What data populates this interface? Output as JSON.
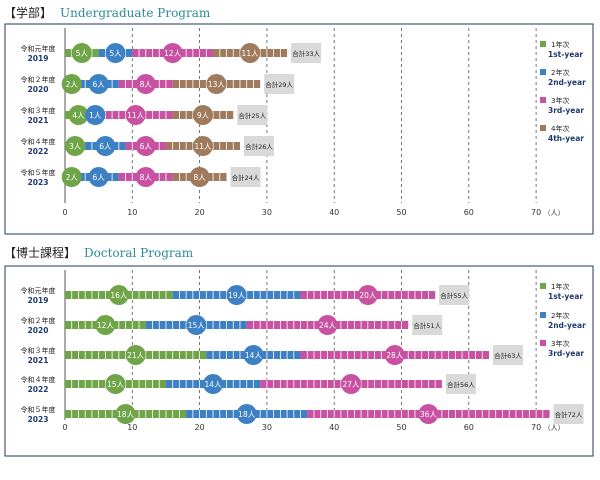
{
  "colors": {
    "year1": "#6fa548",
    "year2": "#3d80c4",
    "year3": "#c851a1",
    "year4": "#a07a5c",
    "frame": "#1f3a5c",
    "total_box": "#d9d9d9",
    "title_en": "#2b8a9a"
  },
  "unit_label": "（人）",
  "x_ticks": [
    0,
    10,
    20,
    30,
    40,
    50,
    60,
    70
  ],
  "chart_data": [
    {
      "type": "bar",
      "stacked": true,
      "orientation": "horizontal",
      "title_jp": "【学部】",
      "title_en": "Undergraduate Program",
      "xlim": [
        0,
        70
      ],
      "xlabel": "（人）",
      "legend_position": "right",
      "legend": [
        {
          "jp": "1年次",
          "en": "1st-year",
          "color": "#6fa548"
        },
        {
          "jp": "2年次",
          "en": "2nd-year",
          "color": "#3d80c4"
        },
        {
          "jp": "3年次",
          "en": "3rd-year",
          "color": "#c851a1"
        },
        {
          "jp": "4年次",
          "en": "4th-year",
          "color": "#a07a5c"
        }
      ],
      "categories": [
        {
          "jp": "令和元年度",
          "year": "2019"
        },
        {
          "jp": "令和２年度",
          "year": "2020"
        },
        {
          "jp": "令和３年度",
          "year": "2021"
        },
        {
          "jp": "令和４年度",
          "year": "2022"
        },
        {
          "jp": "令和５年度",
          "year": "2023"
        }
      ],
      "series": [
        {
          "name": "1st-year",
          "values": [
            5,
            2,
            4,
            3,
            2
          ]
        },
        {
          "name": "2nd-year",
          "values": [
            5,
            6,
            1,
            6,
            6
          ]
        },
        {
          "name": "3rd-year",
          "values": [
            12,
            8,
            11,
            6,
            8
          ]
        },
        {
          "name": "4th-year",
          "values": [
            11,
            13,
            9,
            11,
            8
          ]
        }
      ],
      "totals": [
        "合計33人",
        "合計29人",
        "合計25人",
        "合計26人",
        "合計24人"
      ],
      "segment_labels": [
        [
          "5人",
          "5人",
          "12人",
          "11人"
        ],
        [
          "2人",
          "6人",
          "8人",
          "13人"
        ],
        [
          "4人",
          "1人",
          "11人",
          "9人"
        ],
        [
          "3人",
          "6人",
          "6人",
          "11人"
        ],
        [
          "2人",
          "6人",
          "8人",
          "8人"
        ]
      ]
    },
    {
      "type": "bar",
      "stacked": true,
      "orientation": "horizontal",
      "title_jp": "【博士課程】",
      "title_en": "Doctoral Program",
      "xlim": [
        0,
        70
      ],
      "xlabel": "（人）",
      "legend_position": "right",
      "legend": [
        {
          "jp": "1年次",
          "en": "1st-year",
          "color": "#6fa548"
        },
        {
          "jp": "2年次",
          "en": "2nd-year",
          "color": "#3d80c4"
        },
        {
          "jp": "3年次",
          "en": "3rd-year",
          "color": "#c851a1"
        }
      ],
      "categories": [
        {
          "jp": "令和元年度",
          "year": "2019"
        },
        {
          "jp": "令和２年度",
          "year": "2020"
        },
        {
          "jp": "令和３年度",
          "year": "2021"
        },
        {
          "jp": "令和４年度",
          "year": "2022"
        },
        {
          "jp": "令和５年度",
          "year": "2023"
        }
      ],
      "series": [
        {
          "name": "1st-year",
          "values": [
            16,
            12,
            21,
            15,
            18
          ]
        },
        {
          "name": "2nd-year",
          "values": [
            19,
            15,
            14,
            14,
            18
          ]
        },
        {
          "name": "3rd-year",
          "values": [
            20,
            24,
            28,
            27,
            36
          ]
        }
      ],
      "totals": [
        "合計55人",
        "合計51人",
        "合計63人",
        "合計56人",
        "合計72人"
      ],
      "segment_labels": [
        [
          "16人",
          "19人",
          "20人"
        ],
        [
          "12人",
          "15人",
          "24人"
        ],
        [
          "21人",
          "14人",
          "28人"
        ],
        [
          "15人",
          "14人",
          "27人"
        ],
        [
          "18人",
          "18人",
          "36人"
        ]
      ]
    }
  ]
}
